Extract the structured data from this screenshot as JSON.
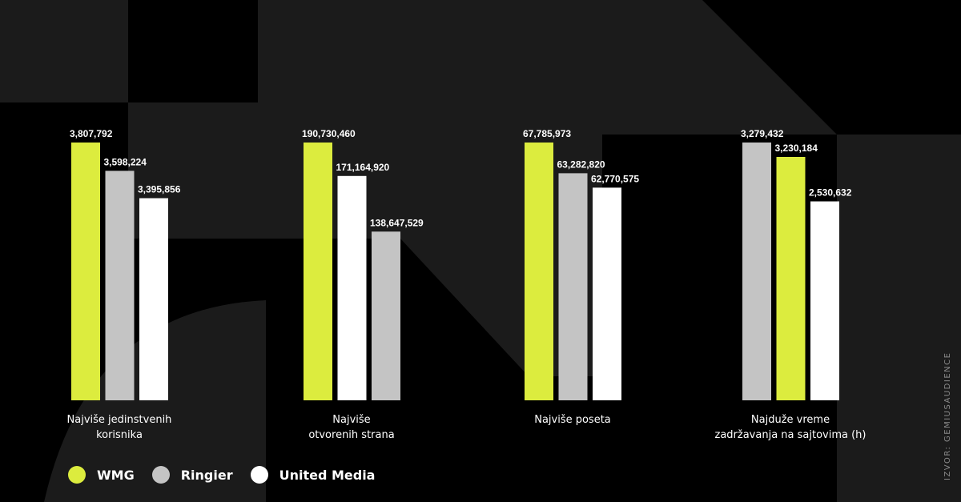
{
  "chart_data": {
    "type": "bar",
    "colors": {
      "WMG": "#dcec3e",
      "Ringier": "#c4c4c4",
      "United Media": "#ffffff"
    },
    "legend": {
      "position": "bottom-left",
      "entries": [
        "WMG",
        "Ringier",
        "United Media"
      ]
    },
    "grid": false,
    "groups": [
      {
        "label": "Najviše jedinstvenih\nkorisnika",
        "ylim": [
          1900000,
          3807792
        ],
        "bars": [
          {
            "series": "WMG",
            "value": 3807792,
            "label": "3,807,792"
          },
          {
            "series": "Ringier",
            "value": 3598224,
            "label": "3,598,224"
          },
          {
            "series": "United Media",
            "value": 3395856,
            "label": "3,395,856"
          }
        ]
      },
      {
        "label": "Najviše\notvorenih strana",
        "ylim": [
          40000000,
          190730460
        ],
        "bars": [
          {
            "series": "WMG",
            "value": 190730460,
            "label": "190,730,460"
          },
          {
            "series": "United Media",
            "value": 171164920,
            "label": "171,164,920"
          },
          {
            "series": "Ringier",
            "value": 138647529,
            "label": "138,647,529"
          }
        ]
      },
      {
        "label": "Najviše poseta",
        "ylim": [
          30000000,
          67785973
        ],
        "bars": [
          {
            "series": "WMG",
            "value": 67785973,
            "label": "67,785,973"
          },
          {
            "series": "Ringier",
            "value": 63282820,
            "label": "63,282,820"
          },
          {
            "series": "United Media",
            "value": 62770575,
            "label": "62,770,575"
          }
        ]
      },
      {
        "label": "Najduže vreme\nzadržavanja na sajtovima (h)",
        "ylim": [
          0,
          3279432
        ],
        "bars": [
          {
            "series": "Ringier",
            "value": 3279432,
            "label": "3,279,432"
          },
          {
            "series": "WMG",
            "value": 3230184,
            "label": "3,230,184"
          },
          {
            "series": "United Media",
            "value": 2530632,
            "label": "2,530,632"
          }
        ]
      }
    ]
  },
  "source": "IZVOR: GEMIUSAUDIENCE"
}
